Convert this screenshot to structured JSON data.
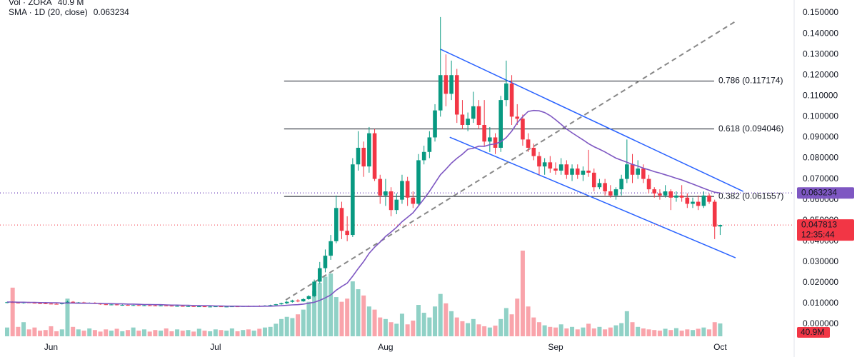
{
  "chart_data": {
    "type": "candlestick",
    "indicators": [
      {
        "name": "Vol · ZORA",
        "value": 40.9,
        "label": "40.9 M",
        "color": "#f23645"
      },
      {
        "name": "SMA · 1D (20, close)",
        "value": 0.063234,
        "label": "0.063234",
        "color": "#7e57c2"
      }
    ],
    "up_color": "#089981",
    "down_color": "#f23645",
    "ylim": [
      -0.0072,
      0.1562
    ],
    "yticks": [
      {
        "value": 0.15,
        "label": "0.150000"
      },
      {
        "value": 0.14,
        "label": "0.140000"
      },
      {
        "value": 0.13,
        "label": "0.130000"
      },
      {
        "value": 0.12,
        "label": "0.120000"
      },
      {
        "value": 0.11,
        "label": "0.110000"
      },
      {
        "value": 0.1,
        "label": "0.100000"
      },
      {
        "value": 0.09,
        "label": "0.090000"
      },
      {
        "value": 0.08,
        "label": "0.080000"
      },
      {
        "value": 0.07,
        "label": "0.070000"
      },
      {
        "value": 0.06,
        "label": "0.060000"
      },
      {
        "value": 0.05,
        "label": "0.050000"
      },
      {
        "value": 0.04,
        "label": "0.040000"
      },
      {
        "value": 0.03,
        "label": "0.030000"
      },
      {
        "value": 0.02,
        "label": "0.020000"
      },
      {
        "value": 0.01,
        "label": "0.010000"
      },
      {
        "value": 0,
        "label": "0.000000"
      }
    ],
    "xticks": [
      {
        "value": 8,
        "label": "Jun"
      },
      {
        "value": 38,
        "label": "Jul"
      },
      {
        "value": 69,
        "label": "Aug"
      },
      {
        "value": 100,
        "label": "Sep"
      },
      {
        "value": 130,
        "label": "Oct"
      }
    ],
    "candles": [
      [
        0.0104,
        0.0108,
        0.0101,
        0.0106
      ],
      [
        0.0106,
        0.011,
        0.0103,
        0.0104
      ],
      [
        0.0104,
        0.0107,
        0.01,
        0.0102
      ],
      [
        0.0102,
        0.0106,
        0.0099,
        0.0105
      ],
      [
        0.0105,
        0.0108,
        0.0102,
        0.0103
      ],
      [
        0.0103,
        0.0106,
        0.01,
        0.0101
      ],
      [
        0.0101,
        0.0104,
        0.0098,
        0.01
      ],
      [
        0.01,
        0.0103,
        0.0097,
        0.0099
      ],
      [
        0.0099,
        0.0102,
        0.0096,
        0.0098
      ],
      [
        0.0098,
        0.0101,
        0.0095,
        0.0097
      ],
      [
        0.0097,
        0.0103,
        0.0095,
        0.0101
      ],
      [
        0.0101,
        0.0113,
        0.0099,
        0.0108
      ],
      [
        0.0108,
        0.0111,
        0.0102,
        0.0104
      ],
      [
        0.0104,
        0.0107,
        0.0101,
        0.0105
      ],
      [
        0.0105,
        0.0108,
        0.0101,
        0.0102
      ],
      [
        0.0102,
        0.0105,
        0.0099,
        0.0103
      ],
      [
        0.0103,
        0.0106,
        0.0098,
        0.0099
      ],
      [
        0.0099,
        0.0102,
        0.0094,
        0.0096
      ],
      [
        0.0096,
        0.0099,
        0.0092,
        0.0094
      ],
      [
        0.0094,
        0.0097,
        0.0091,
        0.0095
      ],
      [
        0.0095,
        0.0098,
        0.0091,
        0.0092
      ],
      [
        0.0092,
        0.0096,
        0.0089,
        0.0093
      ],
      [
        0.0093,
        0.0096,
        0.0089,
        0.009
      ],
      [
        0.009,
        0.0094,
        0.0088,
        0.0092
      ],
      [
        0.0092,
        0.0095,
        0.0088,
        0.0089
      ],
      [
        0.0089,
        0.0093,
        0.0087,
        0.0091
      ],
      [
        0.0091,
        0.0094,
        0.0088,
        0.009
      ],
      [
        0.009,
        0.0093,
        0.0087,
        0.0088
      ],
      [
        0.0088,
        0.0092,
        0.0086,
        0.009
      ],
      [
        0.009,
        0.0093,
        0.0087,
        0.0089
      ],
      [
        0.0089,
        0.0092,
        0.0086,
        0.0087
      ],
      [
        0.0087,
        0.009,
        0.0085,
        0.0088
      ],
      [
        0.0088,
        0.0091,
        0.0085,
        0.0086
      ],
      [
        0.0086,
        0.0089,
        0.0084,
        0.0087
      ],
      [
        0.0087,
        0.009,
        0.0084,
        0.0085
      ],
      [
        0.0085,
        0.0088,
        0.0083,
        0.0086
      ],
      [
        0.0086,
        0.0089,
        0.0083,
        0.0084
      ],
      [
        0.0084,
        0.0087,
        0.0082,
        0.0085
      ],
      [
        0.0085,
        0.0088,
        0.0083,
        0.0086
      ],
      [
        0.0086,
        0.0089,
        0.0083,
        0.0084
      ],
      [
        0.0084,
        0.0087,
        0.0082,
        0.0085
      ],
      [
        0.0085,
        0.0088,
        0.0083,
        0.0086
      ],
      [
        0.0086,
        0.0089,
        0.0083,
        0.0085
      ],
      [
        0.0085,
        0.0088,
        0.0083,
        0.0087
      ],
      [
        0.0087,
        0.009,
        0.0084,
        0.0086
      ],
      [
        0.0086,
        0.0089,
        0.0084,
        0.0088
      ],
      [
        0.0088,
        0.0091,
        0.0085,
        0.0087
      ],
      [
        0.0087,
        0.0092,
        0.0085,
        0.009
      ],
      [
        0.009,
        0.0094,
        0.0088,
        0.0092
      ],
      [
        0.0092,
        0.0098,
        0.009,
        0.0096
      ],
      [
        0.0096,
        0.0104,
        0.0094,
        0.0101
      ],
      [
        0.0101,
        0.0112,
        0.0097,
        0.0108
      ],
      [
        0.0108,
        0.0118,
        0.0104,
        0.0114
      ],
      [
        0.0114,
        0.012,
        0.0106,
        0.011
      ],
      [
        0.011,
        0.0125,
        0.0108,
        0.0121
      ],
      [
        0.0121,
        0.014,
        0.0118,
        0.0135
      ],
      [
        0.0135,
        0.0215,
        0.013,
        0.0205
      ],
      [
        0.0205,
        0.03,
        0.0195,
        0.027
      ],
      [
        0.027,
        0.036,
        0.025,
        0.033
      ],
      [
        0.033,
        0.043,
        0.031,
        0.04
      ],
      [
        0.04,
        0.062,
        0.039,
        0.056
      ],
      [
        0.056,
        0.059,
        0.041,
        0.045
      ],
      [
        0.045,
        0.052,
        0.04,
        0.043
      ],
      [
        0.043,
        0.08,
        0.042,
        0.077
      ],
      [
        0.077,
        0.093,
        0.074,
        0.085
      ],
      [
        0.085,
        0.088,
        0.071,
        0.076
      ],
      [
        0.076,
        0.095,
        0.073,
        0.092
      ],
      [
        0.092,
        0.094,
        0.069,
        0.07
      ],
      [
        0.07,
        0.072,
        0.058,
        0.062
      ],
      [
        0.062,
        0.07,
        0.057,
        0.064
      ],
      [
        0.064,
        0.066,
        0.052,
        0.055
      ],
      [
        0.055,
        0.063,
        0.053,
        0.06
      ],
      [
        0.06,
        0.072,
        0.058,
        0.069
      ],
      [
        0.069,
        0.071,
        0.057,
        0.061
      ],
      [
        0.061,
        0.064,
        0.056,
        0.058
      ],
      [
        0.058,
        0.082,
        0.057,
        0.079
      ],
      [
        0.079,
        0.086,
        0.077,
        0.083
      ],
      [
        0.083,
        0.093,
        0.08,
        0.09
      ],
      [
        0.09,
        0.106,
        0.088,
        0.103
      ],
      [
        0.103,
        0.148,
        0.1,
        0.12
      ],
      [
        0.12,
        0.13,
        0.105,
        0.111
      ],
      [
        0.111,
        0.127,
        0.108,
        0.12
      ],
      [
        0.12,
        0.123,
        0.097,
        0.101
      ],
      [
        0.101,
        0.108,
        0.094,
        0.096
      ],
      [
        0.096,
        0.102,
        0.093,
        0.099
      ],
      [
        0.099,
        0.112,
        0.097,
        0.105
      ],
      [
        0.105,
        0.108,
        0.094,
        0.096
      ],
      [
        0.096,
        0.108,
        0.086,
        0.088
      ],
      [
        0.088,
        0.095,
        0.083,
        0.09
      ],
      [
        0.09,
        0.092,
        0.082,
        0.085
      ],
      [
        0.085,
        0.11,
        0.083,
        0.108
      ],
      [
        0.108,
        0.127,
        0.105,
        0.116
      ],
      [
        0.116,
        0.12,
        0.096,
        0.1
      ],
      [
        0.1,
        0.106,
        0.096,
        0.099
      ],
      [
        0.099,
        0.101,
        0.086,
        0.089
      ],
      [
        0.089,
        0.092,
        0.083,
        0.085
      ],
      [
        0.085,
        0.087,
        0.079,
        0.081
      ],
      [
        0.081,
        0.083,
        0.072,
        0.076
      ],
      [
        0.076,
        0.08,
        0.072,
        0.078
      ],
      [
        0.078,
        0.081,
        0.073,
        0.075
      ],
      [
        0.075,
        0.078,
        0.072,
        0.074
      ],
      [
        0.074,
        0.08,
        0.072,
        0.077
      ],
      [
        0.077,
        0.079,
        0.07,
        0.072
      ],
      [
        0.072,
        0.077,
        0.069,
        0.075
      ],
      [
        0.075,
        0.077,
        0.07,
        0.072
      ],
      [
        0.072,
        0.076,
        0.069,
        0.074
      ],
      [
        0.074,
        0.084,
        0.071,
        0.073
      ],
      [
        0.073,
        0.075,
        0.064,
        0.066
      ],
      [
        0.066,
        0.07,
        0.065,
        0.068
      ],
      [
        0.068,
        0.07,
        0.062,
        0.064
      ],
      [
        0.064,
        0.067,
        0.061,
        0.062
      ],
      [
        0.062,
        0.066,
        0.06,
        0.065
      ],
      [
        0.065,
        0.072,
        0.062,
        0.07
      ],
      [
        0.07,
        0.089,
        0.068,
        0.077
      ],
      [
        0.077,
        0.082,
        0.068,
        0.072
      ],
      [
        0.072,
        0.079,
        0.07,
        0.075
      ],
      [
        0.075,
        0.077,
        0.068,
        0.07
      ],
      [
        0.07,
        0.072,
        0.063,
        0.065
      ],
      [
        0.065,
        0.066,
        0.061,
        0.063
      ],
      [
        0.063,
        0.065,
        0.06,
        0.062
      ],
      [
        0.062,
        0.067,
        0.061,
        0.064
      ],
      [
        0.064,
        0.065,
        0.055,
        0.061
      ],
      [
        0.061,
        0.064,
        0.059,
        0.062
      ],
      [
        0.062,
        0.067,
        0.059,
        0.061
      ],
      [
        0.061,
        0.063,
        0.056,
        0.058
      ],
      [
        0.058,
        0.061,
        0.056,
        0.059
      ],
      [
        0.059,
        0.062,
        0.055,
        0.057
      ],
      [
        0.057,
        0.064,
        0.056,
        0.062
      ],
      [
        0.062,
        0.063,
        0.058,
        0.059
      ],
      [
        0.059,
        0.06,
        0.041,
        0.047
      ],
      [
        0.0471,
        0.048,
        0.043,
        0.047813
      ]
    ],
    "volume": {
      "values": [
        28,
        155,
        30,
        45,
        22,
        28,
        18,
        20,
        32,
        16,
        22,
        120,
        30,
        22,
        18,
        25,
        20,
        15,
        22,
        18,
        24,
        16,
        20,
        28,
        18,
        22,
        15,
        20,
        18,
        25,
        16,
        22,
        18,
        20,
        15,
        24,
        18,
        16,
        22,
        20,
        18,
        25,
        16,
        20,
        22,
        18,
        24,
        28,
        30,
        40,
        55,
        62,
        58,
        70,
        85,
        110,
        145,
        170,
        190,
        200,
        125,
        110,
        120,
        175,
        150,
        130,
        95,
        85,
        60,
        55,
        45,
        40,
        72,
        38,
        50,
        100,
        75,
        60,
        95,
        135,
        105,
        80,
        60,
        48,
        42,
        55,
        38,
        32,
        28,
        34,
        55,
        90,
        70,
        120,
        273,
        95,
        60,
        45,
        35,
        30,
        28,
        38,
        25,
        30,
        22,
        28,
        40,
        25,
        30,
        22,
        28,
        35,
        42,
        80,
        45,
        30,
        25,
        22,
        20,
        18,
        24,
        20,
        26,
        18,
        22,
        20,
        24,
        28,
        22,
        45,
        40.9
      ]
    },
    "sma": {
      "color": "#7e57c2",
      "values": [
        0.0107,
        0.0107,
        0.0106,
        0.0106,
        0.0105,
        0.0105,
        0.0104,
        0.0104,
        0.0103,
        0.0103,
        0.0102,
        0.0102,
        0.0102,
        0.0101,
        0.0101,
        0.0101,
        0.01,
        0.01,
        0.0099,
        0.0099,
        0.0098,
        0.0098,
        0.0097,
        0.0097,
        0.0096,
        0.0095,
        0.0095,
        0.0094,
        0.0094,
        0.0093,
        0.0092,
        0.0092,
        0.0091,
        0.0091,
        0.009,
        0.009,
        0.0089,
        0.0089,
        0.0088,
        0.0088,
        0.0087,
        0.0087,
        0.0087,
        0.0086,
        0.0086,
        0.0086,
        0.0086,
        0.0087,
        0.0087,
        0.0088,
        0.0089,
        0.0091,
        0.0093,
        0.0094,
        0.0097,
        0.0101,
        0.0106,
        0.0115,
        0.0127,
        0.0141,
        0.0164,
        0.0182,
        0.0198,
        0.0231,
        0.0268,
        0.0302,
        0.0342,
        0.0371,
        0.0396,
        0.0423,
        0.0444,
        0.0467,
        0.0494,
        0.0515,
        0.0537,
        0.057,
        0.0604,
        0.064,
        0.068,
        0.072,
        0.0747,
        0.0776,
        0.0799,
        0.0819,
        0.0843,
        0.0848,
        0.0858,
        0.0857,
        0.0865,
        0.0869,
        0.0879,
        0.0899,
        0.093,
        0.097,
        0.1,
        0.1025,
        0.103,
        0.1028,
        0.102,
        0.1005,
        0.0985,
        0.0963,
        0.094,
        0.0922,
        0.0905,
        0.0888,
        0.087,
        0.0855,
        0.0843,
        0.083,
        0.0815,
        0.08,
        0.079,
        0.078,
        0.077,
        0.0762,
        0.0752,
        0.0744,
        0.0735,
        0.0728,
        0.072,
        0.0712,
        0.0703,
        0.0695,
        0.0685,
        0.0675,
        0.0665,
        0.0655,
        0.0645,
        0.0636,
        0.063234
      ]
    },
    "fib_levels": [
      {
        "value": 0.117174,
        "label": "0.786 (0.117174)"
      },
      {
        "value": 0.094046,
        "label": "0.618 (0.094046)"
      },
      {
        "value": 0.061557,
        "label": "0.382 (0.061557)"
      }
    ],
    "fib_x": [
      50.5,
      128.9
    ],
    "trendlines": [
      {
        "x": [
          79.0,
          134.2
        ],
        "y": [
          0.1325,
          0.064
        ],
        "color": "#2962ff"
      },
      {
        "x": [
          80.7,
          132.8
        ],
        "y": [
          0.0901,
          0.032
        ],
        "color": "#2962ff"
      },
      {
        "x": [
          50.8,
          132.8
        ],
        "y": [
          0.0117,
          0.1459
        ],
        "color": "#888888",
        "dashed": true
      }
    ],
    "sma_last": {
      "value": 0.063234,
      "label": "0.063234"
    },
    "last_price": {
      "value": 0.047813,
      "label": "0.047813"
    },
    "countdown": "12:35:44",
    "volume_last": {
      "value": 40.9,
      "label": "40.9M"
    }
  }
}
